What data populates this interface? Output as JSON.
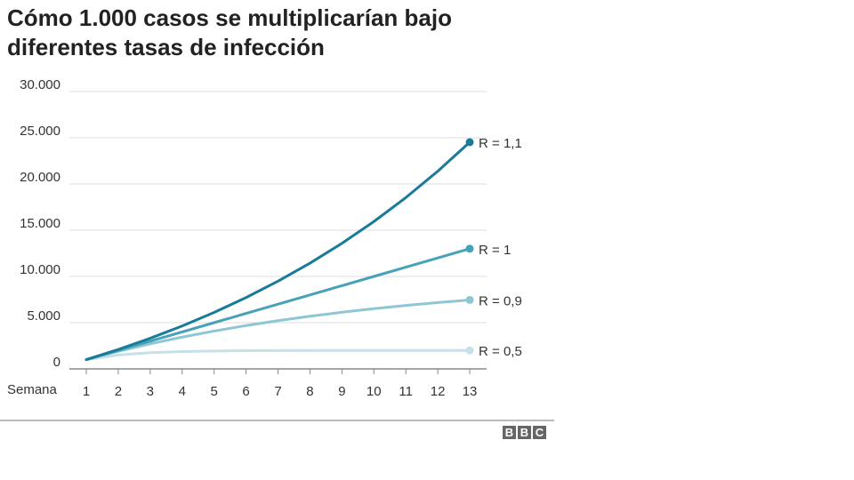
{
  "chart_data": {
    "type": "line",
    "title": "Cómo 1.000 casos se multiplicarían bajo diferentes tasas de infección",
    "xlabel": "Semana",
    "ylabel": "",
    "x": [
      1,
      2,
      3,
      4,
      5,
      6,
      7,
      8,
      9,
      10,
      11,
      12,
      13
    ],
    "x_tick_labels": [
      "1",
      "2",
      "3",
      "4",
      "5",
      "6",
      "7",
      "8",
      "9",
      "10",
      "11",
      "12",
      "13"
    ],
    "ylim": [
      0,
      30000
    ],
    "y_ticks": [
      0,
      5000,
      10000,
      15000,
      20000,
      25000,
      30000
    ],
    "y_tick_labels": [
      "0",
      "5.000",
      "10.000",
      "15.000",
      "20.000",
      "25.000",
      "30.000"
    ],
    "grid": true,
    "legend": "end-of-line labels",
    "series": [
      {
        "name": "R = 1,1",
        "color": "#1a7a99",
        "values": [
          1000,
          2100,
          3310,
          4641,
          6105,
          7716,
          9487,
          11436,
          13579,
          15937,
          18531,
          21384,
          24523
        ]
      },
      {
        "name": "R = 1",
        "color": "#46a2b9",
        "values": [
          1000,
          2000,
          3000,
          4000,
          5000,
          6000,
          7000,
          8000,
          9000,
          10000,
          11000,
          12000,
          13000
        ]
      },
      {
        "name": "R = 0,9",
        "color": "#8ec6d4",
        "values": [
          1000,
          1900,
          2710,
          3439,
          4095,
          4686,
          5217,
          5695,
          6126,
          6513,
          6862,
          7176,
          7458
        ]
      },
      {
        "name": "R = 0,5",
        "color": "#c5e0e7",
        "values": [
          1000,
          1500,
          1750,
          1875,
          1938,
          1969,
          1984,
          1992,
          1996,
          1998,
          1999,
          2000,
          2000
        ]
      }
    ]
  },
  "footer": {
    "logo": [
      "B",
      "B",
      "C"
    ]
  }
}
